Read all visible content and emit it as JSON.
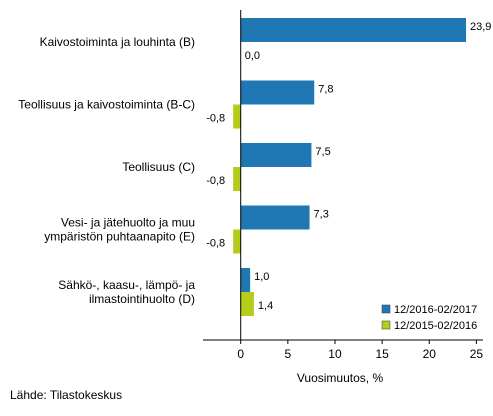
{
  "chart_data": {
    "type": "bar",
    "orientation": "horizontal",
    "categories": [
      [
        "Kaivostoiminta ja louhinta (B)"
      ],
      [
        "Teollisuus ja kaivostoiminta (B-C)"
      ],
      [
        "Teollisuus (C)"
      ],
      [
        "Vesi- ja jätehuolto ja muu",
        "ympäristön puhtaanapito (E)"
      ],
      [
        "Sähkö-, kaasu-, lämpö- ja",
        "ilmastointihuolto (D)"
      ]
    ],
    "series": [
      {
        "name": "12/2016-02/2017",
        "color": "#1f77b4",
        "values": [
          23.9,
          7.8,
          7.5,
          7.3,
          1.0
        ],
        "labels": [
          "23,9",
          "7,8",
          "7,5",
          "7,3",
          "1,0"
        ]
      },
      {
        "name": "12/2015-02/2016",
        "color": "#b5cc1a",
        "values": [
          0.0,
          -0.8,
          -0.8,
          -0.8,
          1.4
        ],
        "labels": [
          "0,0",
          "-0,8",
          "-0,8",
          "-0,8",
          "1,4"
        ]
      }
    ],
    "xticks": [
      0,
      5,
      10,
      15,
      20,
      25
    ],
    "xlim": [
      -4,
      25.7
    ],
    "xlabel": "Vuosimuutos, %",
    "ylabel": "",
    "grid": false,
    "legend_position": "bottom-right"
  },
  "source_text": "Lähde: Tilastokeskus"
}
